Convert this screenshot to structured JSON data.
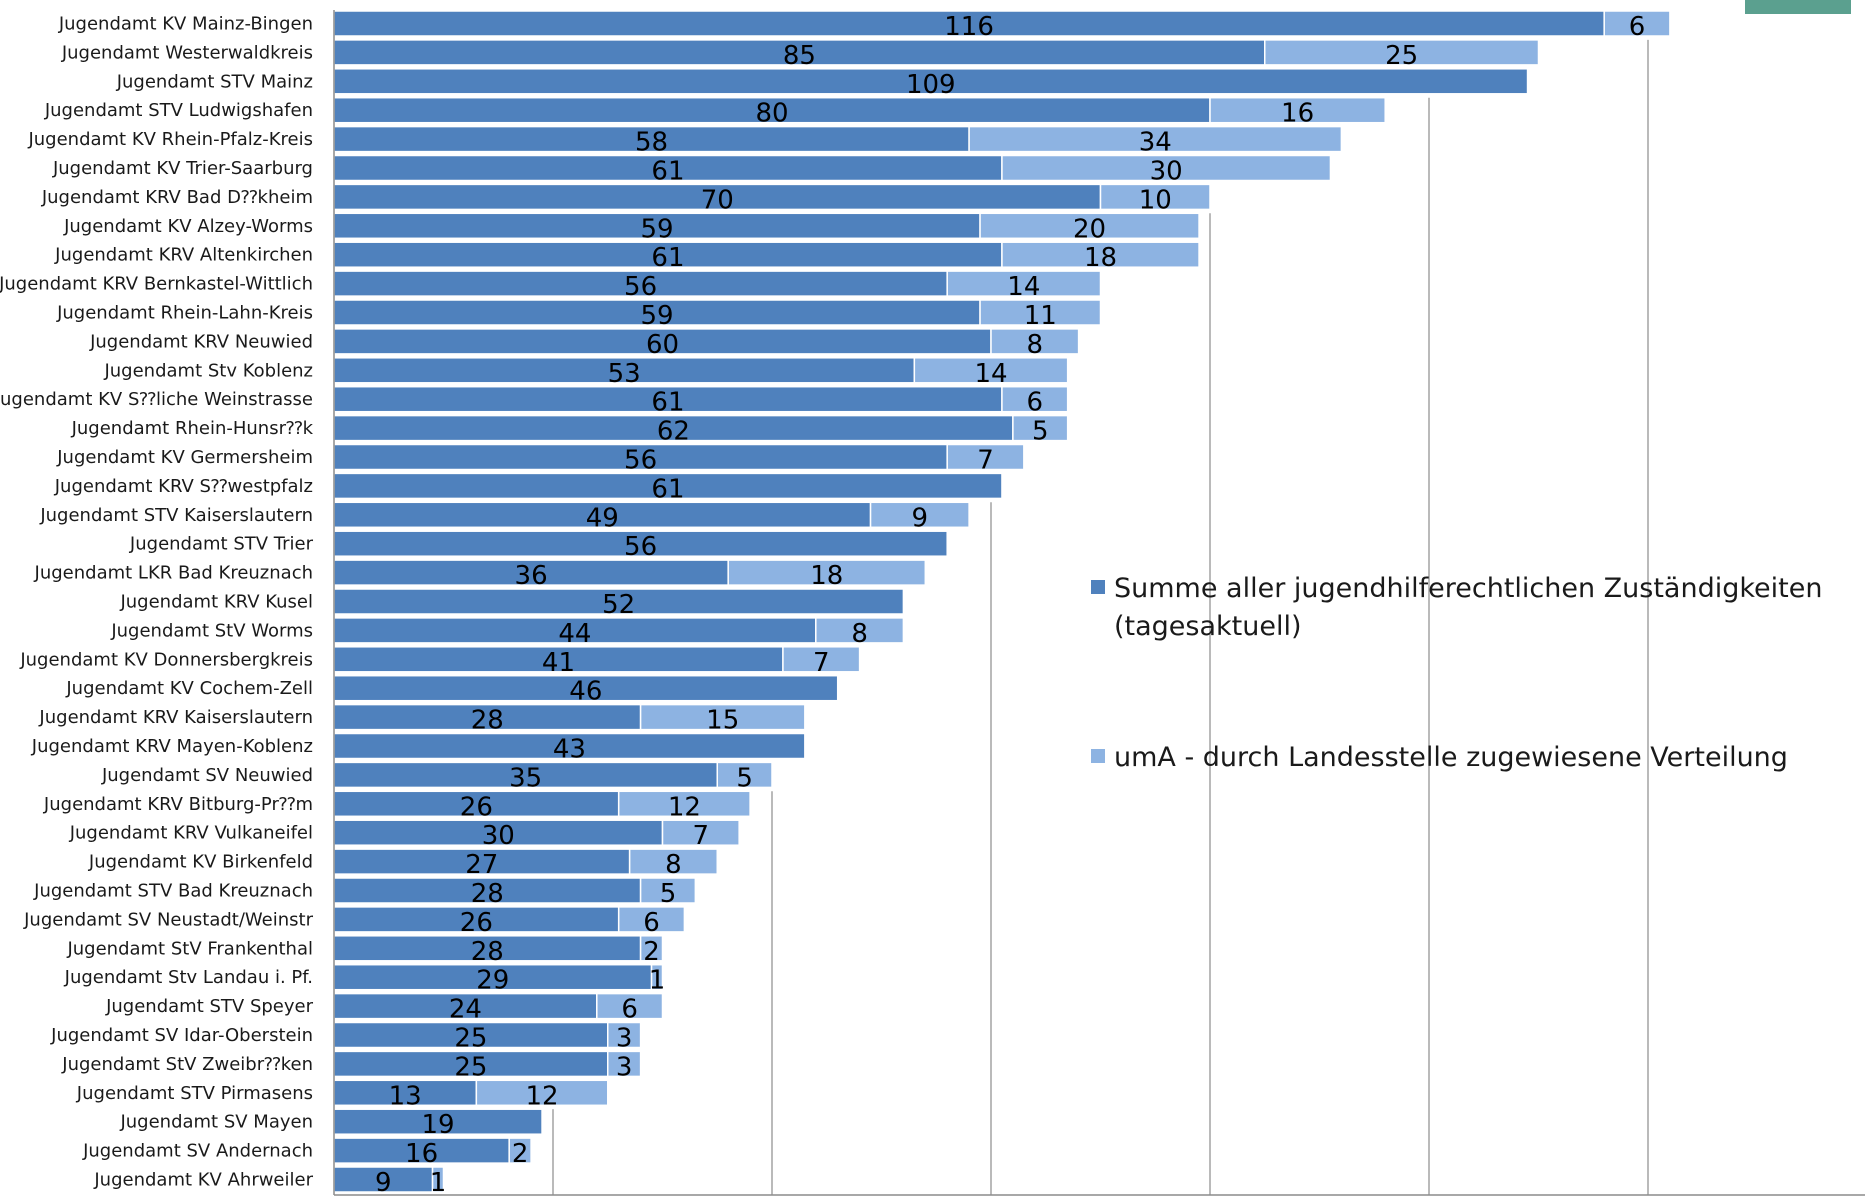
{
  "chart_data": {
    "type": "bar",
    "orientation": "horizontal",
    "stacked": true,
    "title": "",
    "xlabel": "",
    "ylabel": "",
    "xlim": [
      0,
      125
    ],
    "grid": "vertical",
    "gridlines": [
      20,
      40,
      60,
      80,
      100,
      120
    ],
    "legend_position": "right",
    "categories": [
      "Jugendamt KV Mainz-Bingen",
      "Jugendamt Westerwaldkreis",
      "Jugendamt STV Mainz",
      "Jugendamt STV Ludwigshafen",
      "Jugendamt KV Rhein-Pfalz-Kreis",
      "Jugendamt KV Trier-Saarburg",
      "Jugendamt KRV Bad D⁇kheim",
      "Jugendamt KV Alzey-Worms",
      "Jugendamt KRV Altenkirchen",
      "Jugendamt KRV Bernkastel-Wittlich",
      "Jugendamt Rhein-Lahn-Kreis",
      "Jugendamt KRV Neuwied",
      "Jugendamt Stv Koblenz",
      "Jugendamt KV S⁇liche Weinstrasse",
      "Jugendamt Rhein-Hunsr⁇k",
      "Jugendamt KV Germersheim",
      "Jugendamt KRV S⁇westpfalz",
      "Jugendamt STV Kaiserslautern",
      "Jugendamt STV Trier",
      "Jugendamt LKR Bad Kreuznach",
      "Jugendamt KRV Kusel",
      "Jugendamt StV Worms",
      "Jugendamt KV Donnersbergkreis",
      "Jugendamt KV Cochem-Zell",
      "Jugendamt KRV Kaiserslautern",
      "Jugendamt KRV Mayen-Koblenz",
      "Jugendamt SV Neuwied",
      "Jugendamt KRV Bitburg-Pr⁇m",
      "Jugendamt KRV Vulkaneifel",
      "Jugendamt KV Birkenfeld",
      "Jugendamt STV Bad Kreuznach",
      "Jugendamt SV Neustadt/Weinstr",
      "Jugendamt StV Frankenthal",
      "Jugendamt Stv Landau i. Pf.",
      "Jugendamt STV Speyer",
      "Jugendamt SV Idar-Oberstein",
      "Jugendamt StV Zweibr⁇ken",
      "Jugendamt STV Pirmasens",
      "Jugendamt SV Mayen",
      "Jugendamt SV Andernach",
      "Jugendamt KV Ahrweiler"
    ],
    "series": [
      {
        "name": "Summe aller jugendhilferechtlichen Zuständigkeiten (tagesaktuell)",
        "color": "#4f81bd",
        "values": [
          116,
          85,
          109,
          80,
          58,
          61,
          70,
          59,
          61,
          56,
          59,
          60,
          53,
          61,
          62,
          56,
          61,
          49,
          56,
          36,
          52,
          44,
          41,
          46,
          28,
          43,
          35,
          26,
          30,
          27,
          28,
          26,
          28,
          29,
          24,
          25,
          25,
          13,
          19,
          16,
          9
        ]
      },
      {
        "name": "umA - durch Landesstelle zugewiesene Verteilung",
        "color": "#8db3e2",
        "values": [
          6,
          25,
          null,
          16,
          34,
          30,
          10,
          20,
          18,
          14,
          11,
          8,
          14,
          6,
          5,
          7,
          null,
          9,
          null,
          18,
          null,
          8,
          7,
          null,
          15,
          null,
          5,
          12,
          7,
          8,
          5,
          6,
          2,
          1,
          6,
          3,
          3,
          12,
          null,
          2,
          1
        ]
      }
    ]
  },
  "legend": {
    "item1_line1": "Summe aller jugendhilferechtlichen Zuständigkeiten",
    "item1_line2": "(tagesaktuell)",
    "item2": "umA - durch Landesstelle zugewiesene Verteilung"
  }
}
